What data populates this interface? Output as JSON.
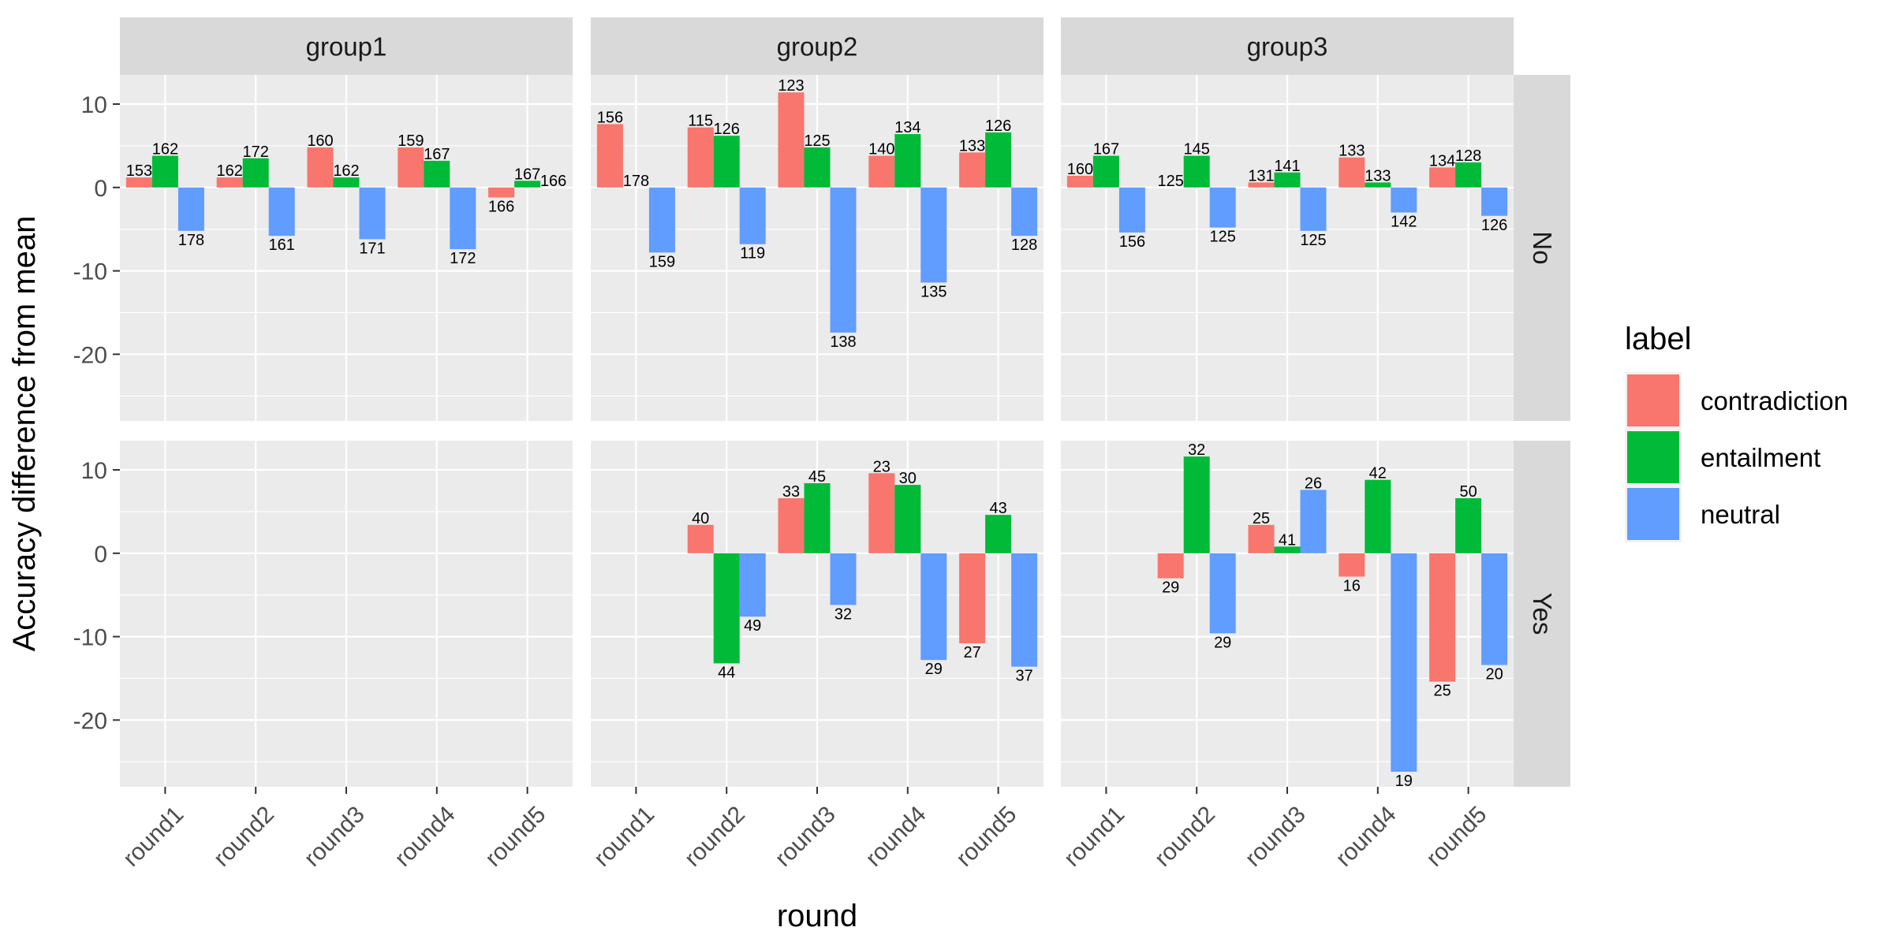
{
  "chart_data": {
    "type": "bar",
    "title": "",
    "xlabel": "round",
    "ylabel": "Accuracy difference from mean",
    "ylim": [
      -28,
      13.5
    ],
    "yticks": [
      10,
      0,
      -10,
      -20
    ],
    "categories": [
      "round1",
      "round2",
      "round3",
      "round4",
      "round5"
    ],
    "col_facets": [
      "group1",
      "group2",
      "group3"
    ],
    "row_facets": [
      "No",
      "Yes"
    ],
    "legend": {
      "title": "label",
      "placement": "right",
      "entries": [
        {
          "name": "contradiction",
          "color": "#F8766D"
        },
        {
          "name": "entailment",
          "color": "#00BA38"
        },
        {
          "name": "neutral",
          "color": "#619CFF"
        }
      ]
    },
    "series": [
      "contradiction",
      "entailment",
      "neutral"
    ],
    "panels": [
      {
        "col": "group1",
        "row": "No",
        "values": [
          [
            [
              1.2,
              153
            ],
            [
              3.8,
              162
            ],
            [
              -5.2,
              178
            ]
          ],
          [
            [
              1.2,
              162
            ],
            [
              3.5,
              172
            ],
            [
              -5.8,
              161
            ]
          ],
          [
            [
              4.8,
              160
            ],
            [
              1.2,
              162
            ],
            [
              -6.2,
              171
            ]
          ],
          [
            [
              4.8,
              159
            ],
            [
              3.2,
              167
            ],
            [
              -7.4,
              172
            ]
          ],
          [
            [
              -1.2,
              166
            ],
            [
              0.8,
              167
            ],
            [
              0.0,
              166
            ]
          ]
        ]
      },
      {
        "col": "group2",
        "row": "No",
        "values": [
          [
            [
              7.6,
              156
            ],
            [
              0.0,
              178
            ],
            [
              -7.8,
              159
            ]
          ],
          [
            [
              7.2,
              115
            ],
            [
              6.2,
              126
            ],
            [
              -6.8,
              119
            ]
          ],
          [
            [
              11.4,
              123
            ],
            [
              4.8,
              125
            ],
            [
              -17.4,
              138
            ]
          ],
          [
            [
              3.8,
              140
            ],
            [
              6.4,
              134
            ],
            [
              -11.4,
              135
            ]
          ],
          [
            [
              4.2,
              133
            ],
            [
              6.6,
              126
            ],
            [
              -5.8,
              128
            ]
          ]
        ]
      },
      {
        "col": "group3",
        "row": "No",
        "values": [
          [
            [
              1.4,
              160
            ],
            [
              3.8,
              167
            ],
            [
              -5.4,
              156
            ]
          ],
          [
            [
              0.0,
              125
            ],
            [
              3.8,
              145
            ],
            [
              -4.8,
              125
            ]
          ],
          [
            [
              0.6,
              131
            ],
            [
              1.8,
              141
            ],
            [
              -5.2,
              125
            ]
          ],
          [
            [
              3.6,
              133
            ],
            [
              0.6,
              133
            ],
            [
              -3.0,
              142
            ]
          ],
          [
            [
              2.4,
              134
            ],
            [
              3.0,
              128
            ],
            [
              -3.4,
              126
            ]
          ]
        ]
      },
      {
        "col": "group1",
        "row": "Yes",
        "values": [
          [
            null,
            null,
            null
          ],
          [
            null,
            null,
            null
          ],
          [
            null,
            null,
            null
          ],
          [
            null,
            null,
            null
          ],
          [
            null,
            null,
            null
          ]
        ]
      },
      {
        "col": "group2",
        "row": "Yes",
        "values": [
          [
            null,
            null,
            null
          ],
          [
            [
              3.4,
              40
            ],
            [
              -13.2,
              44
            ],
            [
              -7.6,
              49
            ]
          ],
          [
            [
              6.6,
              33
            ],
            [
              8.4,
              45
            ],
            [
              -6.2,
              32
            ]
          ],
          [
            [
              9.6,
              23
            ],
            [
              8.2,
              30
            ],
            [
              -12.8,
              29
            ]
          ],
          [
            [
              -10.8,
              27
            ],
            [
              4.6,
              43
            ],
            [
              -13.6,
              37
            ]
          ]
        ]
      },
      {
        "col": "group3",
        "row": "Yes",
        "values": [
          [
            null,
            null,
            null
          ],
          [
            [
              -3.0,
              29
            ],
            [
              11.6,
              32
            ],
            [
              -9.6,
              29
            ]
          ],
          [
            [
              3.4,
              25
            ],
            [
              0.8,
              41
            ],
            [
              7.6,
              26
            ]
          ],
          [
            [
              -2.8,
              16
            ],
            [
              8.8,
              42
            ],
            [
              -26.2,
              19
            ]
          ],
          [
            [
              -15.4,
              25
            ],
            [
              6.6,
              50
            ],
            [
              -13.4,
              20
            ]
          ]
        ]
      }
    ]
  }
}
